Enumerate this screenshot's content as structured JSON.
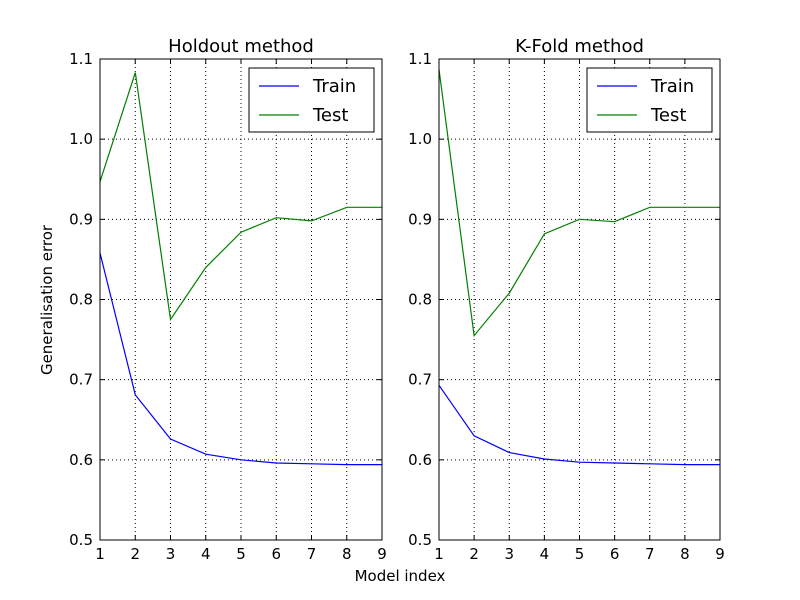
{
  "figure": {
    "ylabel": "Generalisation error",
    "xlabel": "Model index"
  },
  "chart_data": [
    {
      "type": "line",
      "title": "Holdout method",
      "xlabel": "Model index",
      "ylabel": "Generalisation error",
      "xlim": [
        1,
        9
      ],
      "ylim": [
        0.5,
        1.1
      ],
      "xticks": [
        1,
        2,
        3,
        4,
        5,
        6,
        7,
        8,
        9
      ],
      "yticks": [
        0.5,
        0.6,
        0.7,
        0.8,
        0.9,
        1.0,
        1.1
      ],
      "ytick_labels": [
        "0.5",
        "0.6",
        "0.7",
        "0.8",
        "0.9",
        "1.0",
        "1.1"
      ],
      "grid": true,
      "legend_position": "top-right",
      "x": [
        1,
        2,
        3,
        4,
        5,
        6,
        7,
        8,
        9
      ],
      "series": [
        {
          "name": "Train",
          "color": "#0000ff",
          "values": [
            0.858,
            0.681,
            0.626,
            0.607,
            0.6,
            0.596,
            0.595,
            0.594,
            0.594
          ]
        },
        {
          "name": "Test",
          "color": "#008000",
          "values": [
            0.947,
            1.083,
            0.775,
            0.84,
            0.884,
            0.902,
            0.898,
            0.915,
            0.915
          ]
        }
      ]
    },
    {
      "type": "line",
      "title": "K-Fold method",
      "xlabel": "Model index",
      "ylabel": "Generalisation error",
      "xlim": [
        1,
        9
      ],
      "ylim": [
        0.5,
        1.1
      ],
      "xticks": [
        1,
        2,
        3,
        4,
        5,
        6,
        7,
        8,
        9
      ],
      "yticks": [
        0.5,
        0.6,
        0.7,
        0.8,
        0.9,
        1.0,
        1.1
      ],
      "ytick_labels": [
        "0.5",
        "0.6",
        "0.7",
        "0.8",
        "0.9",
        "1.0",
        "1.1"
      ],
      "grid": true,
      "legend_position": "top-right",
      "x": [
        1,
        2,
        3,
        4,
        5,
        6,
        7,
        8,
        9
      ],
      "series": [
        {
          "name": "Train",
          "color": "#0000ff",
          "values": [
            0.693,
            0.63,
            0.609,
            0.601,
            0.597,
            0.596,
            0.595,
            0.594,
            0.594
          ]
        },
        {
          "name": "Test",
          "color": "#008000",
          "values": [
            1.087,
            0.755,
            0.808,
            0.882,
            0.9,
            0.897,
            0.915,
            0.915,
            0.915
          ]
        }
      ]
    }
  ]
}
